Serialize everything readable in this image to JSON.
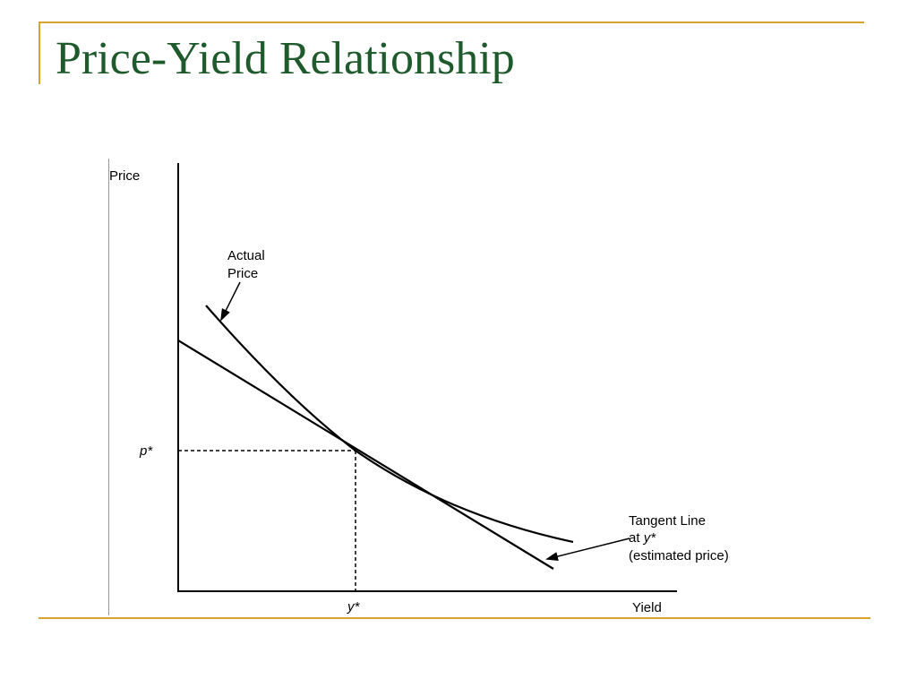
{
  "slide": {
    "title": "Price-Yield Relationship"
  },
  "diagram": {
    "y_axis_label": "Price",
    "x_axis_label": "Yield",
    "p_star_label": "p*",
    "y_star_label": "y*",
    "actual_price_label": [
      "Actual",
      "Price"
    ],
    "tangent_label": {
      "line1": "Tangent Line",
      "line2_prefix": "at ",
      "line2_var": "y*",
      "line3": "(estimated price)"
    }
  },
  "colors": {
    "title": "#1e5a2c",
    "accent": "#d6a32c",
    "ink": "#000000"
  }
}
